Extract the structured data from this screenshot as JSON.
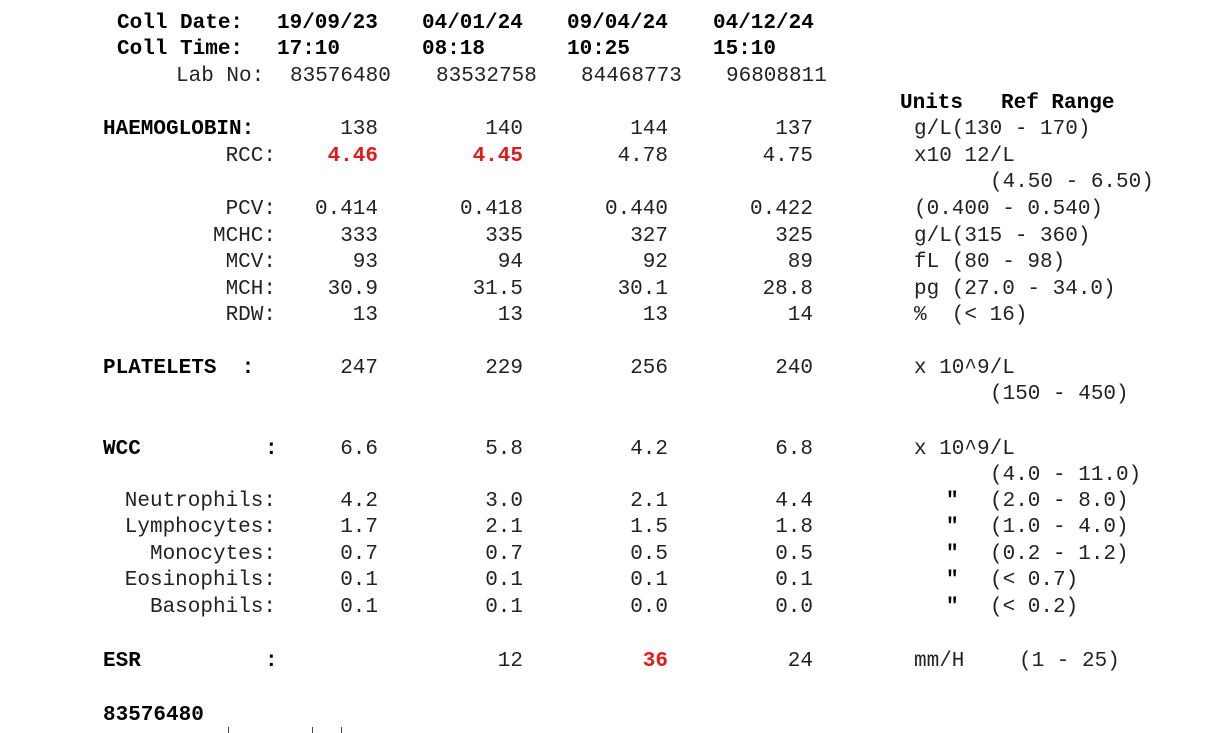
{
  "header": {
    "coll_date_label": "Coll Date:",
    "coll_time_label": "Coll Time:",
    "lab_no_label": "Lab No:",
    "columns": [
      {
        "date": "19/09/23",
        "time": "17:10",
        "lab_no": "83576480"
      },
      {
        "date": "04/01/24",
        "time": "08:18",
        "lab_no": "83532758"
      },
      {
        "date": "09/04/24",
        "time": "10:25",
        "lab_no": "84468773"
      },
      {
        "date": "04/12/24",
        "time": "15:10",
        "lab_no": "96808811"
      }
    ],
    "units_heading": "Units",
    "ref_range_heading": "Ref Range"
  },
  "rows": [
    {
      "label": "HAEMOGLOBIN:",
      "values": [
        "138",
        "140",
        "144",
        "137"
      ],
      "units_ref": "g/L(130 - 170)"
    },
    {
      "label": "RCC:",
      "values": [
        "4.46",
        "4.45",
        "4.78",
        "4.75"
      ],
      "units_ref": "x10 12/L",
      "ref_line2": "(4.50 - 6.50)"
    },
    {
      "label": "PCV:",
      "values": [
        "0.414",
        "0.418",
        "0.440",
        "0.422"
      ],
      "units_ref": "(0.400 - 0.540)"
    },
    {
      "label": "MCHC:",
      "values": [
        "333",
        "335",
        "327",
        "325"
      ],
      "units_ref": "g/L(315 - 360)"
    },
    {
      "label": "MCV:",
      "values": [
        "93",
        "94",
        "92",
        "89"
      ],
      "units_ref": "fL (80 - 98)"
    },
    {
      "label": "MCH:",
      "values": [
        "30.9",
        "31.5",
        "30.1",
        "28.8"
      ],
      "units_ref": "pg (27.0 - 34.0)"
    },
    {
      "label": "RDW:",
      "values": [
        "13",
        "13",
        "13",
        "14"
      ],
      "units_ref": "%  (< 16)"
    },
    {
      "label": "PLATELETS  :",
      "values": [
        "247",
        "229",
        "256",
        "240"
      ],
      "units_ref": "x 10^9/L",
      "ref_line2": "(150 - 450)"
    },
    {
      "label": "WCC",
      "colon": ":",
      "values": [
        "6.6",
        "5.8",
        "4.2",
        "6.8"
      ],
      "units_ref": "x 10^9/L",
      "ref_line2": "(4.0 - 11.0)"
    },
    {
      "label": "Neutrophils:",
      "values": [
        "4.2",
        "3.0",
        "2.1",
        "4.4"
      ],
      "ditto": "\"",
      "ref": "(2.0 - 8.0)"
    },
    {
      "label": "Lymphocytes:",
      "values": [
        "1.7",
        "2.1",
        "1.5",
        "1.8"
      ],
      "ditto": "\"",
      "ref": "(1.0 - 4.0)"
    },
    {
      "label": "Monocytes:",
      "values": [
        "0.7",
        "0.7",
        "0.5",
        "0.5"
      ],
      "ditto": "\"",
      "ref": "(0.2 - 1.2)"
    },
    {
      "label": "Eosinophils:",
      "values": [
        "0.1",
        "0.1",
        "0.1",
        "0.1"
      ],
      "ditto": "\"",
      "ref": "(< 0.7)"
    },
    {
      "label": "Basophils:",
      "values": [
        "0.1",
        "0.1",
        "0.0",
        "0.0"
      ],
      "ditto": "\"",
      "ref": "(< 0.2)"
    },
    {
      "label": "ESR",
      "colon": ":",
      "values": [
        "",
        "12",
        "36",
        "24"
      ],
      "units_ref": "mm/H",
      "ref": "(1 - 25)"
    }
  ],
  "footer": {
    "lab_no": "83576480"
  },
  "flag_color": "#e21a1a"
}
